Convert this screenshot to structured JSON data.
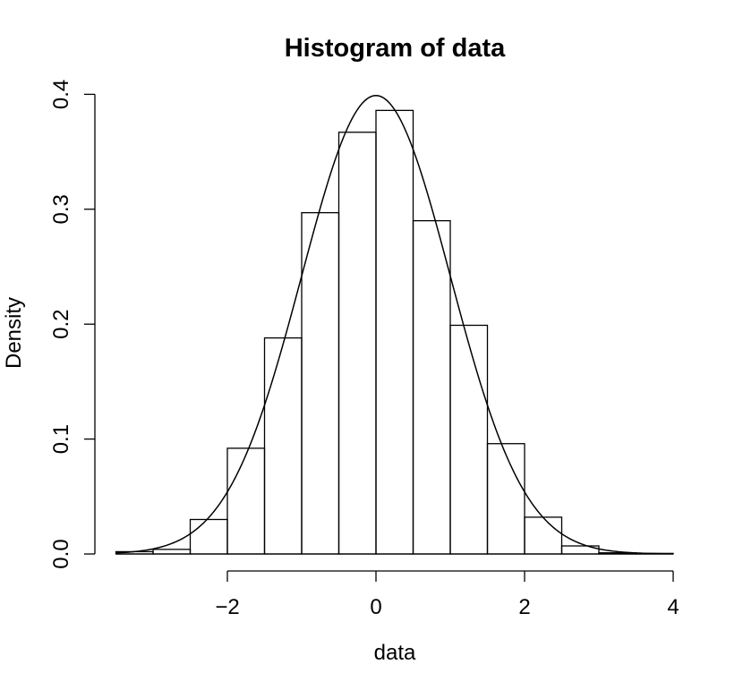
{
  "chart_data": {
    "type": "bar",
    "title": "Histogram of data",
    "xlabel": "data",
    "ylabel": "Density",
    "bin_edges": [
      -3.5,
      -3.0,
      -2.5,
      -2.0,
      -1.5,
      -1.0,
      -0.5,
      0.0,
      0.5,
      1.0,
      1.5,
      2.0,
      2.5,
      3.0,
      3.5,
      4.0
    ],
    "values": [
      0.002,
      0.004,
      0.03,
      0.092,
      0.188,
      0.297,
      0.367,
      0.386,
      0.29,
      0.199,
      0.096,
      0.032,
      0.007,
      0.001,
      0.0005
    ],
    "curve": {
      "type": "line",
      "function": "normal density",
      "mean": 0,
      "sd": 1
    },
    "xlim": [
      -3.5,
      4.0
    ],
    "ylim": [
      0,
      0.4
    ],
    "xticks": [
      -2,
      0,
      2,
      4
    ],
    "xtick_labels": [
      "−2",
      "0",
      "2",
      "4"
    ],
    "yticks": [
      0.0,
      0.1,
      0.2,
      0.3,
      0.4
    ],
    "ytick_labels": [
      "0.0",
      "0.1",
      "0.2",
      "0.3",
      "0.4"
    ],
    "grid": false,
    "legend": "none"
  }
}
